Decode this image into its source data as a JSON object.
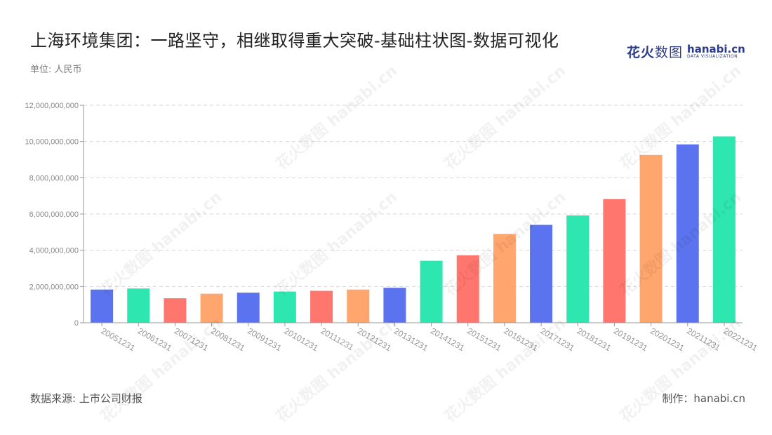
{
  "header": {
    "title": "上海环境集团：一路坚守，相继取得重大突破-基础柱状图-数据可视化",
    "unit": "单位: 人民币"
  },
  "logo": {
    "cn_part1": "花火",
    "cn_part2": "数图",
    "brand": "hanabi.cn",
    "tagline": "DATA VISUALIZATION"
  },
  "watermark": {
    "text": "花火数图 hanabi.cn"
  },
  "footer": {
    "source": "数据来源: 上市公司财报",
    "maker": "制作：hanabi.cn"
  },
  "chart_data": {
    "type": "bar",
    "categories": [
      "20051231",
      "20061231",
      "20071231",
      "20081231",
      "20091231",
      "20101231",
      "20111231",
      "20121231",
      "20131231",
      "20141231",
      "20151231",
      "20161231",
      "20171231",
      "20181231",
      "20191231",
      "20201231",
      "20211231",
      "20221231"
    ],
    "values": [
      1830000000,
      1890000000,
      1350000000,
      1600000000,
      1660000000,
      1720000000,
      1760000000,
      1830000000,
      1930000000,
      3420000000,
      3720000000,
      4900000000,
      5400000000,
      5920000000,
      6820000000,
      9260000000,
      9840000000,
      10280000000
    ],
    "colors": [
      "#5b73ee",
      "#2ee6b0",
      "#ff766e",
      "#ffa56e",
      "#5b73ee",
      "#2ee6b0",
      "#ff766e",
      "#ffa56e",
      "#5b73ee",
      "#2ee6b0",
      "#ff766e",
      "#ffa56e",
      "#5b73ee",
      "#2ee6b0",
      "#ff766e",
      "#ffa56e",
      "#5b73ee",
      "#2ee6b0"
    ],
    "ylim": [
      0,
      12000000000
    ],
    "yticks": [
      0,
      2000000000,
      4000000000,
      6000000000,
      8000000000,
      10000000000,
      12000000000
    ],
    "ytick_labels": [
      "0",
      "2,000,000,000",
      "4,000,000,000",
      "6,000,000,000",
      "8,000,000,000",
      "10,000,000,000",
      "12,000,000,000"
    ],
    "grid": true,
    "legend": "none"
  }
}
